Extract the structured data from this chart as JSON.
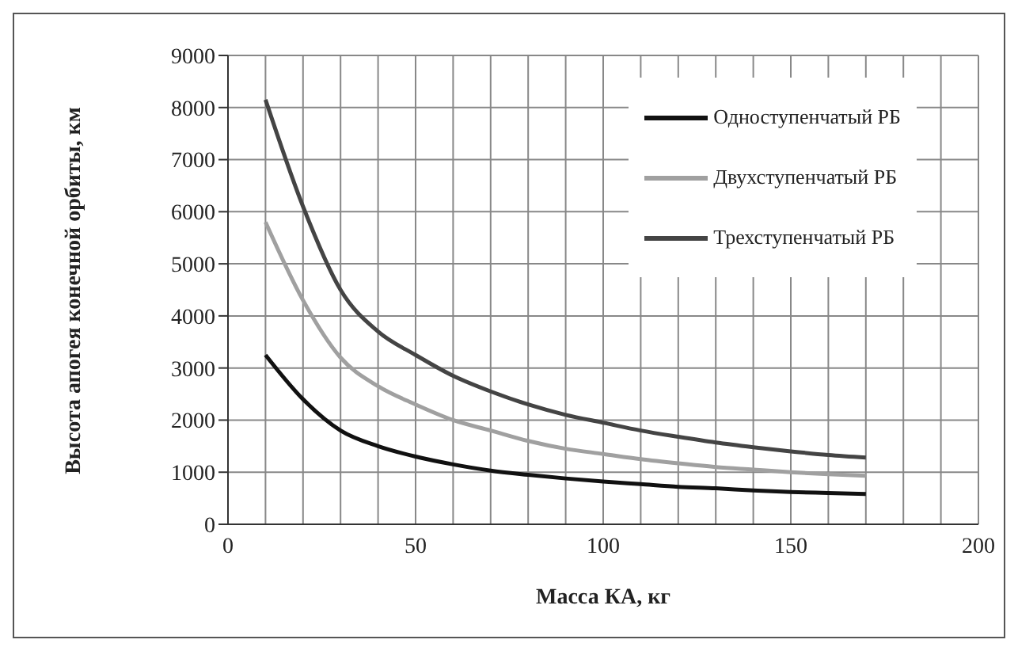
{
  "chart_data": {
    "type": "line",
    "xlabel": "Масса КА, кг",
    "ylabel": "Высота апогея конечной орбиты, км",
    "x": [
      10,
      20,
      30,
      40,
      50,
      60,
      70,
      80,
      90,
      100,
      110,
      120,
      130,
      140,
      150,
      160,
      170
    ],
    "series": [
      {
        "name": "Одноступенчатый РБ",
        "color": "#111111",
        "values": [
          3250,
          2400,
          1800,
          1500,
          1300,
          1150,
          1030,
          950,
          880,
          820,
          770,
          720,
          690,
          650,
          620,
          600,
          580
        ]
      },
      {
        "name": "Двухступенчатый РБ",
        "color": "#a0a0a0",
        "values": [
          5800,
          4300,
          3200,
          2650,
          2300,
          2000,
          1800,
          1600,
          1450,
          1350,
          1250,
          1170,
          1100,
          1050,
          1000,
          960,
          930
        ]
      },
      {
        "name": "Трехступенчатый РБ",
        "color": "#444444",
        "values": [
          8150,
          6100,
          4500,
          3700,
          3250,
          2850,
          2550,
          2300,
          2100,
          1950,
          1800,
          1680,
          1570,
          1480,
          1400,
          1330,
          1280
        ]
      }
    ],
    "xlim": [
      0,
      200
    ],
    "xticks": [
      0,
      {
        "value": 10,
        "label": null
      },
      {
        "value": 20,
        "label": null
      },
      {
        "value": 30,
        "label": null
      },
      {
        "value": 40,
        "label": null
      },
      50,
      {
        "value": 60,
        "label": null
      },
      {
        "value": 70,
        "label": null
      },
      {
        "value": 80,
        "label": null
      },
      {
        "value": 90,
        "label": null
      },
      100,
      {
        "value": 110,
        "label": null
      },
      {
        "value": 120,
        "label": null
      },
      {
        "value": 130,
        "label": null
      },
      {
        "value": 140,
        "label": null
      },
      150,
      {
        "value": 160,
        "label": null
      },
      {
        "value": 170,
        "label": null
      },
      {
        "value": 180,
        "label": null
      },
      {
        "value": 190,
        "label": null
      },
      200
    ],
    "ylim": [
      0,
      9000
    ],
    "yticks": [
      0,
      1000,
      2000,
      3000,
      4000,
      5000,
      6000,
      7000,
      8000,
      9000
    ],
    "grid": true,
    "legend": "top right",
    "marker": "none",
    "line_style": "solid"
  }
}
